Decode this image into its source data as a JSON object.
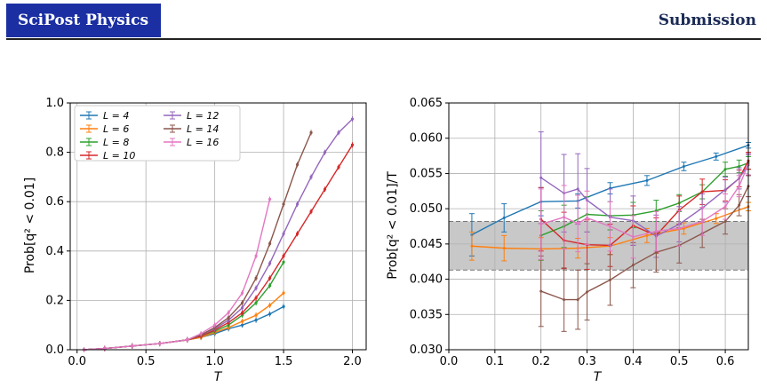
{
  "header": {
    "journal": "SciPost Physics",
    "section": "Submission"
  },
  "colors": {
    "L4": "#1f77b4",
    "L6": "#ff7f0e",
    "L8": "#2ca02c",
    "L10": "#d62728",
    "L12": "#9467bd",
    "L14": "#8c564b",
    "L16": "#e377c2"
  },
  "chart_data": [
    {
      "type": "line",
      "xlabel": "T",
      "ylabel": "Prob[q² < 0.01]",
      "xlim": [
        -0.05,
        2.1
      ],
      "ylim": [
        0,
        1.0
      ],
      "xticks": [
        "0.0",
        "0.5",
        "1.0",
        "1.5",
        "2.0"
      ],
      "yticks": [
        "0.0",
        "0.2",
        "0.4",
        "0.6",
        "0.8",
        "1.0"
      ],
      "grid": true,
      "legend": "top-left",
      "series": [
        {
          "name": "L = 4",
          "key": "L4",
          "x": [
            0.05,
            0.2,
            0.4,
            0.6,
            0.8,
            0.9,
            1.0,
            1.1,
            1.2,
            1.3,
            1.4,
            1.5
          ],
          "y": [
            0.0,
            0.005,
            0.015,
            0.025,
            0.04,
            0.05,
            0.065,
            0.085,
            0.1,
            0.12,
            0.145,
            0.175
          ]
        },
        {
          "name": "L = 6",
          "key": "L6",
          "x": [
            0.05,
            0.2,
            0.4,
            0.6,
            0.8,
            0.9,
            1.0,
            1.1,
            1.2,
            1.3,
            1.4,
            1.5
          ],
          "y": [
            0.0,
            0.005,
            0.015,
            0.025,
            0.04,
            0.05,
            0.07,
            0.09,
            0.115,
            0.14,
            0.18,
            0.23
          ]
        },
        {
          "name": "L = 8",
          "key": "L8",
          "x": [
            0.05,
            0.2,
            0.4,
            0.6,
            0.8,
            0.9,
            1.0,
            1.1,
            1.2,
            1.3,
            1.4,
            1.5
          ],
          "y": [
            0.0,
            0.005,
            0.015,
            0.025,
            0.04,
            0.055,
            0.075,
            0.1,
            0.14,
            0.19,
            0.26,
            0.355
          ]
        },
        {
          "name": "L = 10",
          "key": "L10",
          "x": [
            0.05,
            0.2,
            0.4,
            0.6,
            0.8,
            0.9,
            1.0,
            1.1,
            1.2,
            1.3,
            1.4,
            1.5,
            1.6,
            1.7,
            1.8,
            1.9,
            2.0
          ],
          "y": [
            0.0,
            0.005,
            0.015,
            0.025,
            0.04,
            0.055,
            0.08,
            0.11,
            0.15,
            0.21,
            0.29,
            0.38,
            0.47,
            0.56,
            0.65,
            0.74,
            0.83
          ]
        },
        {
          "name": "L = 12",
          "key": "L12",
          "x": [
            0.05,
            0.2,
            0.4,
            0.6,
            0.8,
            0.9,
            1.0,
            1.1,
            1.2,
            1.3,
            1.4,
            1.5,
            1.6,
            1.7,
            1.8,
            1.9,
            2.0
          ],
          "y": [
            0.0,
            0.005,
            0.015,
            0.025,
            0.04,
            0.06,
            0.085,
            0.12,
            0.17,
            0.25,
            0.35,
            0.47,
            0.59,
            0.7,
            0.8,
            0.88,
            0.935
          ]
        },
        {
          "name": "L = 14",
          "key": "L14",
          "x": [
            0.05,
            0.2,
            0.4,
            0.6,
            0.8,
            0.9,
            1.0,
            1.1,
            1.2,
            1.3,
            1.4,
            1.5,
            1.6,
            1.7
          ],
          "y": [
            0.0,
            0.005,
            0.015,
            0.025,
            0.04,
            0.06,
            0.09,
            0.13,
            0.19,
            0.29,
            0.43,
            0.59,
            0.75,
            0.88
          ]
        },
        {
          "name": "L = 16",
          "key": "L16",
          "x": [
            0.05,
            0.2,
            0.4,
            0.6,
            0.8,
            0.9,
            1.0,
            1.1,
            1.2,
            1.3,
            1.4
          ],
          "y": [
            0.0,
            0.005,
            0.015,
            0.025,
            0.04,
            0.065,
            0.1,
            0.15,
            0.23,
            0.38,
            0.61
          ]
        }
      ]
    },
    {
      "type": "line",
      "xlabel": "T",
      "ylabel": "Prob[q² < 0.01]/T",
      "xlim": [
        0.0,
        0.65
      ],
      "ylim": [
        0.03,
        0.065
      ],
      "xticks": [
        "0.0",
        "0.1",
        "0.2",
        "0.3",
        "0.4",
        "0.5",
        "0.6"
      ],
      "yticks": [
        "0.030",
        "0.035",
        "0.040",
        "0.045",
        "0.050",
        "0.055",
        "0.060",
        "0.065"
      ],
      "grid": true,
      "band": [
        0.0413,
        0.0482
      ],
      "series": [
        {
          "key": "L4",
          "x": [
            0.05,
            0.12,
            0.2,
            0.28,
            0.35,
            0.43,
            0.51,
            0.58,
            0.65
          ],
          "y": [
            0.0463,
            0.0487,
            0.051,
            0.0511,
            0.0529,
            0.054,
            0.056,
            0.0574,
            0.059
          ],
          "err": [
            0.003,
            0.002,
            0.002,
            0.001,
            0.0008,
            0.0007,
            0.0006,
            0.0005,
            0.0004
          ]
        },
        {
          "key": "L6",
          "x": [
            0.05,
            0.12,
            0.2,
            0.28,
            0.35,
            0.43,
            0.51,
            0.58,
            0.65
          ],
          "y": [
            0.0447,
            0.0444,
            0.0443,
            0.0444,
            0.0447,
            0.0462,
            0.0472,
            0.0486,
            0.0503
          ],
          "err": [
            0.002,
            0.0018,
            0.0016,
            0.0014,
            0.0012,
            0.001,
            0.0008,
            0.0007,
            0.0006
          ]
        },
        {
          "key": "L8",
          "x": [
            0.2,
            0.25,
            0.3,
            0.35,
            0.4,
            0.45,
            0.5,
            0.55,
            0.6,
            0.63,
            0.65
          ],
          "y": [
            0.0462,
            0.0475,
            0.0492,
            0.049,
            0.0491,
            0.0497,
            0.0508,
            0.0524,
            0.0556,
            0.056,
            0.0565
          ],
          "err": [
            0.0035,
            0.003,
            0.0025,
            0.002,
            0.0018,
            0.0015,
            0.0012,
            0.001,
            0.001,
            0.0009,
            0.0009
          ]
        },
        {
          "key": "L10",
          "x": [
            0.2,
            0.25,
            0.3,
            0.35,
            0.4,
            0.45,
            0.5,
            0.55,
            0.6,
            0.63,
            0.65
          ],
          "y": [
            0.0485,
            0.0455,
            0.0449,
            0.0448,
            0.0476,
            0.0462,
            0.0498,
            0.0524,
            0.0526,
            0.0543,
            0.0568
          ],
          "err": [
            0.0045,
            0.004,
            0.0035,
            0.003,
            0.0028,
            0.0025,
            0.002,
            0.0018,
            0.0015,
            0.0012,
            0.0012
          ]
        },
        {
          "key": "L12",
          "x": [
            0.2,
            0.25,
            0.28,
            0.3,
            0.35,
            0.4,
            0.45,
            0.5,
            0.55,
            0.6,
            0.63,
            0.65
          ],
          "y": [
            0.0544,
            0.0522,
            0.0528,
            0.0512,
            0.0488,
            0.0483,
            0.0461,
            0.0478,
            0.0501,
            0.0527,
            0.0543,
            0.0562
          ],
          "err": [
            0.0065,
            0.0055,
            0.005,
            0.0045,
            0.004,
            0.0035,
            0.003,
            0.0025,
            0.002,
            0.0018,
            0.0015,
            0.0015
          ]
        },
        {
          "key": "L14",
          "x": [
            0.2,
            0.25,
            0.28,
            0.3,
            0.35,
            0.4,
            0.45,
            0.5,
            0.55,
            0.6,
            0.63,
            0.65
          ],
          "y": [
            0.0383,
            0.0371,
            0.0371,
            0.0382,
            0.0399,
            0.042,
            0.0438,
            0.0448,
            0.0465,
            0.0482,
            0.0505,
            0.0532
          ],
          "err": [
            0.005,
            0.0045,
            0.0042,
            0.004,
            0.0036,
            0.0032,
            0.0028,
            0.0025,
            0.002,
            0.0018,
            0.0015,
            0.0015
          ]
        },
        {
          "key": "L16",
          "x": [
            0.2,
            0.25,
            0.28,
            0.3,
            0.35,
            0.4,
            0.45,
            0.5,
            0.55,
            0.6,
            0.63,
            0.65
          ],
          "y": [
            0.0478,
            0.0488,
            0.0479,
            0.0487,
            0.0475,
            0.046,
            0.0468,
            0.0472,
            0.0482,
            0.0503,
            0.0532,
            0.0563
          ],
          "err": [
            0.005,
            0.0045,
            0.004,
            0.0038,
            0.0035,
            0.003,
            0.0028,
            0.0025,
            0.002,
            0.0018,
            0.0015,
            0.0015
          ]
        }
      ]
    }
  ]
}
